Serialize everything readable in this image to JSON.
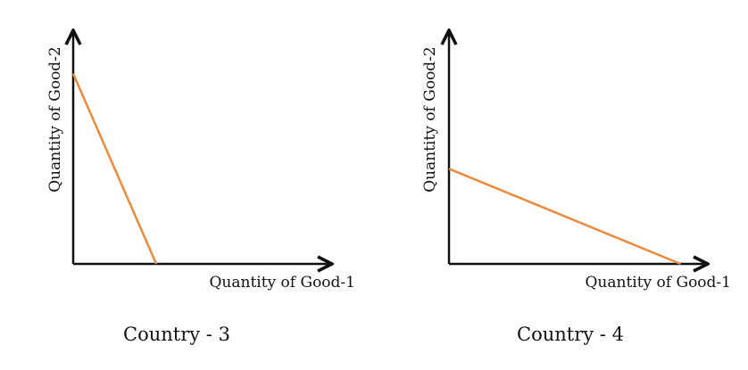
{
  "colors": {
    "axis": "#111111",
    "curve": "#ec8a3c"
  },
  "panels": [
    {
      "caption": "Country - 3",
      "xlabel": "Quantity of Good-1",
      "ylabel": "Quantity of Good-2",
      "curve": {
        "good2_intercept": 0.84,
        "good1_intercept": 0.33
      }
    },
    {
      "caption": "Country - 4",
      "xlabel": "Quantity of Good-1",
      "ylabel": "Quantity of Good-2",
      "curve": {
        "good2_intercept": 0.42,
        "good1_intercept": 0.92
      }
    }
  ]
}
